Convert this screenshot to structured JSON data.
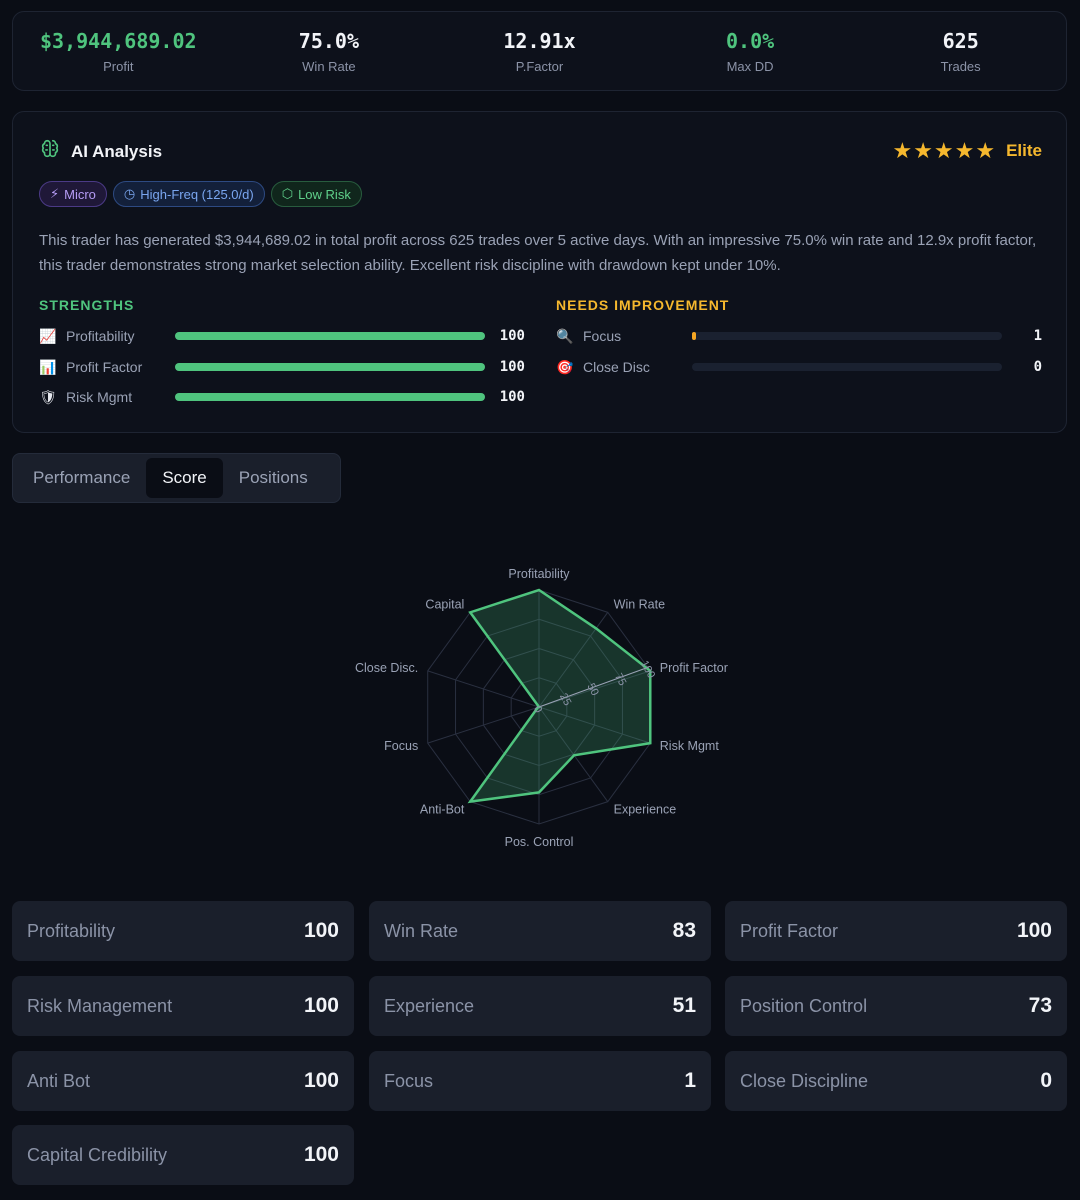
{
  "stats": [
    {
      "value": "$3,944,689.02",
      "label": "Profit",
      "color": "#4fc47e"
    },
    {
      "value": "75.0%",
      "label": "Win Rate",
      "color": "#f2f4f8"
    },
    {
      "value": "12.91x",
      "label": "P.Factor",
      "color": "#f2f4f8"
    },
    {
      "value": "0.0%",
      "label": "Max DD",
      "color": "#4fc47e"
    },
    {
      "value": "625",
      "label": "Trades",
      "color": "#f2f4f8"
    }
  ],
  "ai": {
    "title": "AI Analysis",
    "stars": "★★★★★",
    "rating_label": "Elite",
    "badges": [
      {
        "icon": "⚡",
        "label": "Micro"
      },
      {
        "icon": "◷",
        "label": "High-Freq (125.0/d)"
      },
      {
        "icon": "⬡",
        "label": "Low Risk"
      }
    ],
    "summary": "This trader has generated $3,944,689.02 in total profit across 625 trades over 5 active days. With an impressive 75.0% win rate and 12.9x profit factor, this trader demonstrates strong market selection ability. Excellent risk discipline with drawdown kept under 10%.",
    "strengths_title": "STRENGTHS",
    "improve_title": "NEEDS IMPROVEMENT",
    "strengths": [
      {
        "emoji": "📈",
        "label": "Profitability",
        "value": 100
      },
      {
        "emoji": "📊",
        "label": "Profit Factor",
        "value": 100
      },
      {
        "emoji": "🛡",
        "label": "Risk Mgmt",
        "value": 100
      }
    ],
    "improvements": [
      {
        "emoji": "🔍",
        "label": "Focus",
        "value": 1
      },
      {
        "emoji": "🎯",
        "label": "Close Disc",
        "value": 0
      }
    ]
  },
  "tabs": [
    "Performance",
    "Score",
    "Positions"
  ],
  "active_tab": "Score",
  "chart_data": {
    "type": "radar",
    "categories": [
      "Profitability",
      "Win Rate",
      "Profit Factor",
      "Risk Mgmt",
      "Experience",
      "Pos. Control",
      "Anti-Bot",
      "Focus",
      "Close Disc.",
      "Capital"
    ],
    "values": [
      100,
      83,
      100,
      100,
      51,
      73,
      100,
      1,
      0,
      100
    ],
    "ticks": [
      "0",
      "25",
      "50",
      "75",
      "100"
    ],
    "range": [
      0,
      100
    ],
    "color": "#4fc47e"
  },
  "scores": [
    {
      "label": "Profitability",
      "value": "100"
    },
    {
      "label": "Win Rate",
      "value": "83"
    },
    {
      "label": "Profit Factor",
      "value": "100"
    },
    {
      "label": "Risk Management",
      "value": "100"
    },
    {
      "label": "Experience",
      "value": "51"
    },
    {
      "label": "Position Control",
      "value": "73"
    },
    {
      "label": "Anti Bot",
      "value": "100"
    },
    {
      "label": "Focus",
      "value": "1"
    },
    {
      "label": "Close Discipline",
      "value": "0"
    },
    {
      "label": "Capital Credibility",
      "value": "100"
    }
  ]
}
